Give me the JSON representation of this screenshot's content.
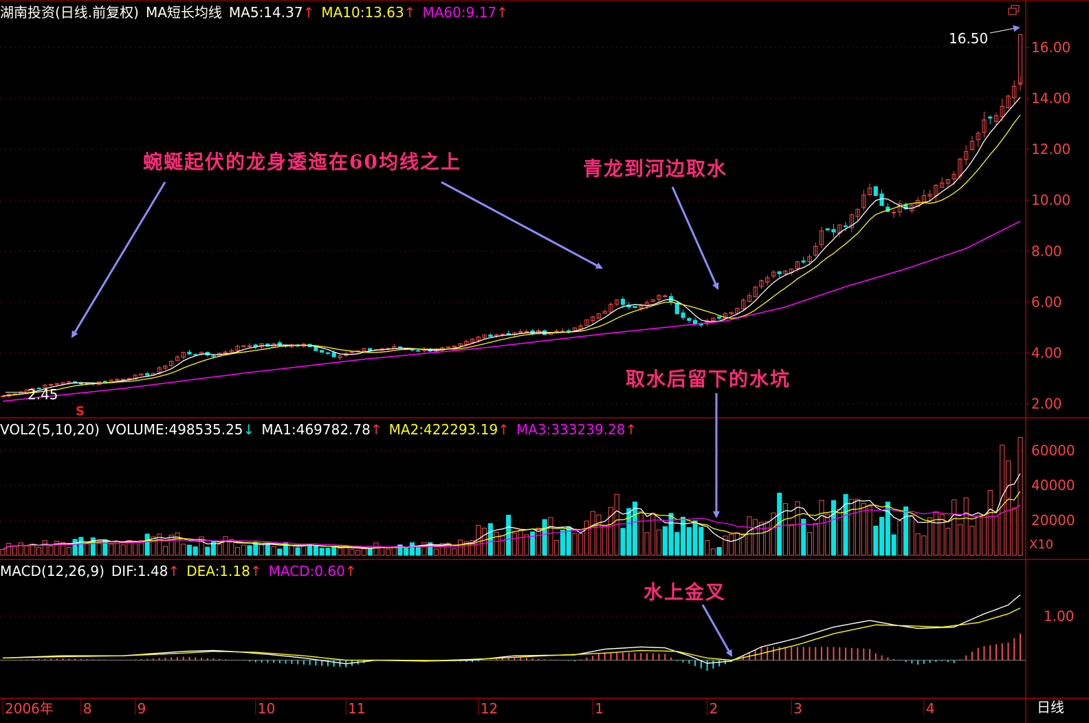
{
  "headers": {
    "price": {
      "title": "湖南投资(日线.前复权)",
      "indicator": "MA短长均线",
      "ma5": "MA5:14.37",
      "ma10": "MA10:13.63",
      "ma60": "MA60:9.17",
      "up": "↑"
    },
    "volume": {
      "title": "VOL2(5,10,20)",
      "volume": "VOLUME:498535.25",
      "down": "↓",
      "ma1": "MA1:469782.78",
      "ma2": "MA2:422293.19",
      "ma3": "MA3:333239.28",
      "up": "↑"
    },
    "macd": {
      "title": "MACD(12,26,9)",
      "dif": "DIF:1.48",
      "dea": "DEA:1.18",
      "macd": "MACD:0.60",
      "up": "↑"
    }
  },
  "annotations": {
    "dragon_body": "蜿蜒起伏的龙身逶迤在60均线之上",
    "dragon_water": "青龙到河边取水",
    "water_pit": "取水后留下的水坑",
    "golden_cross": "水上金叉"
  },
  "markers": {
    "low_label": "2.45",
    "high_label": "16.50",
    "signal": "S",
    "volume_unit": "X10",
    "period": "日线"
  },
  "colors": {
    "background": "#000000",
    "border": "#b00000",
    "up_candle": "#ff4a4a",
    "down_candle": "#00e5e5",
    "ma_short": "#ffffff",
    "ma_mid": "#ffff00",
    "ma_long": "#ff00ff",
    "annotation": "#ff2a7a",
    "arrow": "#8c8cff",
    "axis_text": "#ff4040"
  },
  "chart_data": [
    {
      "type": "candlestick",
      "title": "湖南投资(日线.前复权)",
      "y_ticks": [
        "2.00",
        "4.00",
        "6.00",
        "8.00",
        "10.00",
        "12.00",
        "14.00",
        "16.00"
      ],
      "ylim": [
        1.5,
        17.0
      ],
      "x_ticks": [
        {
          "label": "2006年",
          "index": 0
        },
        {
          "label": "8",
          "index": 13
        },
        {
          "label": "9",
          "index": 22
        },
        {
          "label": "10",
          "index": 42
        },
        {
          "label": "11",
          "index": 57
        },
        {
          "label": "12",
          "index": 79
        },
        {
          "label": "1",
          "index": 98
        },
        {
          "label": "2",
          "index": 117
        },
        {
          "label": "3",
          "index": 131
        },
        {
          "label": "4",
          "index": 153
        }
      ],
      "series": [
        {
          "name": "MA5",
          "value": 14.37
        },
        {
          "name": "MA10",
          "value": 13.63
        },
        {
          "name": "MA60",
          "value": 9.17
        }
      ],
      "close_keypoints": [
        [
          0,
          2.3
        ],
        [
          5,
          2.6
        ],
        [
          10,
          2.85
        ],
        [
          15,
          2.8
        ],
        [
          20,
          3.0
        ],
        [
          25,
          3.2
        ],
        [
          30,
          4.0
        ],
        [
          35,
          3.9
        ],
        [
          40,
          4.3
        ],
        [
          45,
          4.3
        ],
        [
          50,
          4.3
        ],
        [
          55,
          3.9
        ],
        [
          60,
          4.1
        ],
        [
          65,
          4.2
        ],
        [
          70,
          4.1
        ],
        [
          75,
          4.2
        ],
        [
          80,
          4.7
        ],
        [
          85,
          4.8
        ],
        [
          90,
          4.8
        ],
        [
          95,
          4.9
        ],
        [
          98,
          5.4
        ],
        [
          102,
          6.0
        ],
        [
          106,
          5.8
        ],
        [
          110,
          6.3
        ],
        [
          112,
          5.6
        ],
        [
          116,
          5.1
        ],
        [
          118,
          5.3
        ],
        [
          122,
          5.8
        ],
        [
          126,
          6.9
        ],
        [
          130,
          7.3
        ],
        [
          134,
          7.8
        ],
        [
          136,
          8.8
        ],
        [
          140,
          9.0
        ],
        [
          144,
          10.4
        ],
        [
          147,
          9.6
        ],
        [
          150,
          9.8
        ],
        [
          154,
          10.4
        ],
        [
          158,
          11.0
        ],
        [
          162,
          12.8
        ],
        [
          166,
          13.5
        ],
        [
          168,
          14.5
        ],
        [
          169,
          16.5
        ]
      ],
      "ma60_keypoints": [
        [
          0,
          2.1
        ],
        [
          20,
          2.6
        ],
        [
          40,
          3.2
        ],
        [
          60,
          3.75
        ],
        [
          80,
          4.2
        ],
        [
          100,
          4.75
        ],
        [
          120,
          5.25
        ],
        [
          130,
          5.8
        ],
        [
          140,
          6.6
        ],
        [
          150,
          7.3
        ],
        [
          160,
          8.1
        ],
        [
          169,
          9.17
        ]
      ],
      "annotations": [
        {
          "text": "2.45",
          "index": 1,
          "value": 2.45
        },
        {
          "text": "16.50",
          "index": 169,
          "value": 16.5
        }
      ]
    },
    {
      "type": "bar",
      "title": "VOL2(5,10,20)",
      "y_ticks": [
        "20000",
        "40000",
        "60000"
      ],
      "ylim": [
        0,
        66000
      ],
      "unit": "X10",
      "keypoints": [
        [
          0,
          5000
        ],
        [
          10,
          7000
        ],
        [
          20,
          8500
        ],
        [
          30,
          9000
        ],
        [
          40,
          7000
        ],
        [
          50,
          5500
        ],
        [
          60,
          5000
        ],
        [
          70,
          5000
        ],
        [
          78,
          7000
        ],
        [
          80,
          18000
        ],
        [
          85,
          17000
        ],
        [
          90,
          15000
        ],
        [
          95,
          16000
        ],
        [
          98,
          22000
        ],
        [
          102,
          25000
        ],
        [
          108,
          22000
        ],
        [
          112,
          20000
        ],
        [
          116,
          12000
        ],
        [
          118,
          6000
        ],
        [
          122,
          10000
        ],
        [
          126,
          25000
        ],
        [
          130,
          27000
        ],
        [
          134,
          23000
        ],
        [
          140,
          25000
        ],
        [
          145,
          22000
        ],
        [
          150,
          20000
        ],
        [
          155,
          20000
        ],
        [
          160,
          24000
        ],
        [
          165,
          40000
        ],
        [
          169,
          50000
        ]
      ],
      "series": [
        {
          "name": "MA1",
          "value": 469782.78
        },
        {
          "name": "MA2",
          "value": 422293.19
        },
        {
          "name": "MA3",
          "value": 333239.28
        }
      ]
    },
    {
      "type": "line",
      "title": "MACD(12,26,9)",
      "y_ticks": [
        "1.00"
      ],
      "ylim": [
        -0.8,
        1.8
      ],
      "dif_keypoints": [
        [
          0,
          0.05
        ],
        [
          10,
          0.1
        ],
        [
          20,
          0.1
        ],
        [
          30,
          0.2
        ],
        [
          35,
          0.22
        ],
        [
          40,
          0.18
        ],
        [
          45,
          0.12
        ],
        [
          50,
          0.05
        ],
        [
          57,
          -0.08
        ],
        [
          62,
          0.0
        ],
        [
          70,
          -0.02
        ],
        [
          78,
          0.0
        ],
        [
          85,
          0.1
        ],
        [
          95,
          0.12
        ],
        [
          100,
          0.25
        ],
        [
          106,
          0.3
        ],
        [
          110,
          0.28
        ],
        [
          114,
          0.1
        ],
        [
          117,
          -0.07
        ],
        [
          121,
          -0.02
        ],
        [
          126,
          0.3
        ],
        [
          132,
          0.5
        ],
        [
          138,
          0.75
        ],
        [
          144,
          0.9
        ],
        [
          148,
          0.8
        ],
        [
          152,
          0.72
        ],
        [
          158,
          0.75
        ],
        [
          163,
          1.05
        ],
        [
          167,
          1.25
        ],
        [
          169,
          1.48
        ]
      ],
      "dea_keypoints": [
        [
          0,
          0.05
        ],
        [
          10,
          0.08
        ],
        [
          20,
          0.1
        ],
        [
          30,
          0.16
        ],
        [
          35,
          0.2
        ],
        [
          42,
          0.18
        ],
        [
          50,
          0.1
        ],
        [
          57,
          0.0
        ],
        [
          65,
          0.0
        ],
        [
          72,
          -0.01
        ],
        [
          80,
          0.03
        ],
        [
          90,
          0.1
        ],
        [
          100,
          0.16
        ],
        [
          106,
          0.22
        ],
        [
          112,
          0.2
        ],
        [
          117,
          0.05
        ],
        [
          121,
          0.0
        ],
        [
          126,
          0.15
        ],
        [
          132,
          0.35
        ],
        [
          138,
          0.6
        ],
        [
          145,
          0.8
        ],
        [
          150,
          0.78
        ],
        [
          156,
          0.75
        ],
        [
          162,
          0.85
        ],
        [
          167,
          1.05
        ],
        [
          169,
          1.18
        ]
      ],
      "series": [
        {
          "name": "DIF",
          "value": 1.48
        },
        {
          "name": "DEA",
          "value": 1.18
        },
        {
          "name": "MACD",
          "value": 0.6
        }
      ]
    }
  ]
}
